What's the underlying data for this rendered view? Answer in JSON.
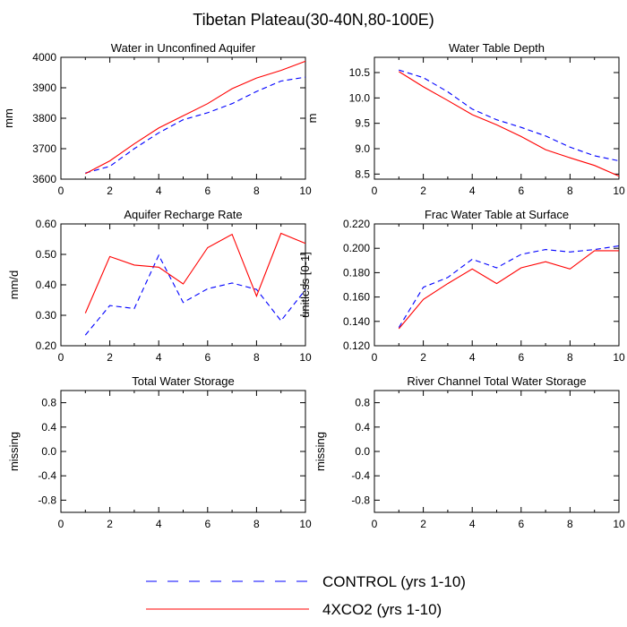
{
  "title": "Tibetan Plateau(30-40N,80-100E)",
  "colors": {
    "control": "#0000ff",
    "co2": "#ff0000",
    "axis": "#000000",
    "background": "#ffffff"
  },
  "legend": {
    "entries": [
      {
        "label": "CONTROL (yrs 1-10)",
        "style": "dashed",
        "color_key": "control"
      },
      {
        "label": "4XCO2 (yrs 1-10)",
        "style": "solid",
        "color_key": "co2"
      }
    ]
  },
  "chart_data": [
    {
      "id": "water-unconfined-aquifer",
      "type": "line",
      "title": "Water in Unconfined Aquifer",
      "xlabel": "",
      "ylabel": "mm",
      "xlim": [
        0,
        10
      ],
      "ylim": [
        3600,
        4000
      ],
      "xticks": [
        0,
        2,
        4,
        6,
        8,
        10
      ],
      "yticks": [
        3600,
        3700,
        3800,
        3900,
        4000
      ],
      "ytick_labels": [
        "3600",
        "3700",
        "3800",
        "3900",
        "4000"
      ],
      "x": [
        1,
        2,
        3,
        4,
        5,
        6,
        7,
        8,
        9,
        10
      ],
      "series": [
        {
          "name": "CONTROL (yrs 1-10)",
          "style": "dashed",
          "color_key": "control",
          "values": [
            3620,
            3642,
            3700,
            3752,
            3795,
            3818,
            3848,
            3888,
            3922,
            3935
          ]
        },
        {
          "name": "4XCO2 (yrs 1-10)",
          "style": "solid",
          "color_key": "co2",
          "values": [
            3618,
            3660,
            3716,
            3768,
            3808,
            3848,
            3897,
            3932,
            3957,
            3987
          ]
        }
      ]
    },
    {
      "id": "water-table-depth",
      "type": "line",
      "title": "Water Table Depth",
      "xlabel": "",
      "ylabel": "m",
      "xlim": [
        0,
        10
      ],
      "ylim": [
        8.4,
        10.8
      ],
      "xticks": [
        0,
        2,
        4,
        6,
        8,
        10
      ],
      "yticks": [
        8.5,
        9.0,
        9.5,
        10.0,
        10.5
      ],
      "ytick_labels": [
        "8.5",
        "9.0",
        "9.5",
        "10.0",
        "10.5"
      ],
      "x": [
        1,
        2,
        3,
        4,
        5,
        6,
        7,
        8,
        9,
        10
      ],
      "series": [
        {
          "name": "CONTROL (yrs 1-10)",
          "style": "dashed",
          "color_key": "control",
          "values": [
            10.55,
            10.4,
            10.12,
            9.78,
            9.57,
            9.42,
            9.25,
            9.03,
            8.86,
            8.76
          ]
        },
        {
          "name": "4XCO2 (yrs 1-10)",
          "style": "solid",
          "color_key": "co2",
          "values": [
            10.52,
            10.22,
            9.95,
            9.67,
            9.47,
            9.24,
            8.98,
            8.82,
            8.67,
            8.46
          ]
        }
      ]
    },
    {
      "id": "aquifer-recharge-rate",
      "type": "line",
      "title": "Aquifer Recharge Rate",
      "xlabel": "",
      "ylabel": "mm/d",
      "xlim": [
        0,
        10
      ],
      "ylim": [
        0.2,
        0.6
      ],
      "xticks": [
        0,
        2,
        4,
        6,
        8,
        10
      ],
      "yticks": [
        0.2,
        0.3,
        0.4,
        0.5,
        0.6
      ],
      "ytick_labels": [
        "0.20",
        "0.30",
        "0.40",
        "0.50",
        "0.60"
      ],
      "x": [
        1,
        2,
        3,
        4,
        5,
        6,
        7,
        8,
        9,
        10
      ],
      "series": [
        {
          "name": "CONTROL (yrs 1-10)",
          "style": "dashed",
          "color_key": "control",
          "values": [
            0.235,
            0.332,
            0.322,
            0.497,
            0.342,
            0.387,
            0.406,
            0.385,
            0.282,
            0.384
          ]
        },
        {
          "name": "4XCO2 (yrs 1-10)",
          "style": "solid",
          "color_key": "co2",
          "values": [
            0.307,
            0.493,
            0.465,
            0.458,
            0.403,
            0.522,
            0.566,
            0.363,
            0.569,
            0.536
          ]
        }
      ]
    },
    {
      "id": "frac-water-table-surface",
      "type": "line",
      "title": "Frac Water Table at Surface",
      "xlabel": "",
      "ylabel": "unitless [0-1]",
      "xlim": [
        0,
        10
      ],
      "ylim": [
        0.12,
        0.22
      ],
      "xticks": [
        0,
        2,
        4,
        6,
        8,
        10
      ],
      "yticks": [
        0.12,
        0.14,
        0.16,
        0.18,
        0.2,
        0.22
      ],
      "ytick_labels": [
        "0.120",
        "0.140",
        "0.160",
        "0.180",
        "0.200",
        "0.220"
      ],
      "x": [
        1,
        2,
        3,
        4,
        5,
        6,
        7,
        8,
        9,
        10
      ],
      "series": [
        {
          "name": "CONTROL (yrs 1-10)",
          "style": "dashed",
          "color_key": "control",
          "values": [
            0.135,
            0.168,
            0.176,
            0.191,
            0.184,
            0.195,
            0.199,
            0.197,
            0.199,
            0.202
          ]
        },
        {
          "name": "4XCO2 (yrs 1-10)",
          "style": "solid",
          "color_key": "co2",
          "values": [
            0.134,
            0.158,
            0.171,
            0.183,
            0.171,
            0.184,
            0.189,
            0.183,
            0.198,
            0.198
          ]
        }
      ]
    },
    {
      "id": "total-water-storage",
      "type": "line",
      "title": "Total Water Storage",
      "xlabel": "",
      "ylabel": "missing",
      "xlim": [
        0,
        10
      ],
      "ylim": [
        -1,
        1
      ],
      "xticks": [
        0,
        2,
        4,
        6,
        8,
        10
      ],
      "yticks": [
        -0.8,
        -0.4,
        0.0,
        0.4,
        0.8
      ],
      "ytick_labels": [
        "-0.8",
        "-0.4",
        "0.0",
        "0.4",
        "0.8"
      ],
      "x": [],
      "series": []
    },
    {
      "id": "river-channel-storage",
      "type": "line",
      "title": "River Channel Total Water Storage",
      "xlabel": "",
      "ylabel": "missing",
      "xlim": [
        0,
        10
      ],
      "ylim": [
        -1,
        1
      ],
      "xticks": [
        0,
        2,
        4,
        6,
        8,
        10
      ],
      "yticks": [
        -0.8,
        -0.4,
        0.0,
        0.4,
        0.8
      ],
      "ytick_labels": [
        "-0.8",
        "-0.4",
        "0.0",
        "0.4",
        "0.8"
      ],
      "x": [],
      "series": []
    }
  ]
}
